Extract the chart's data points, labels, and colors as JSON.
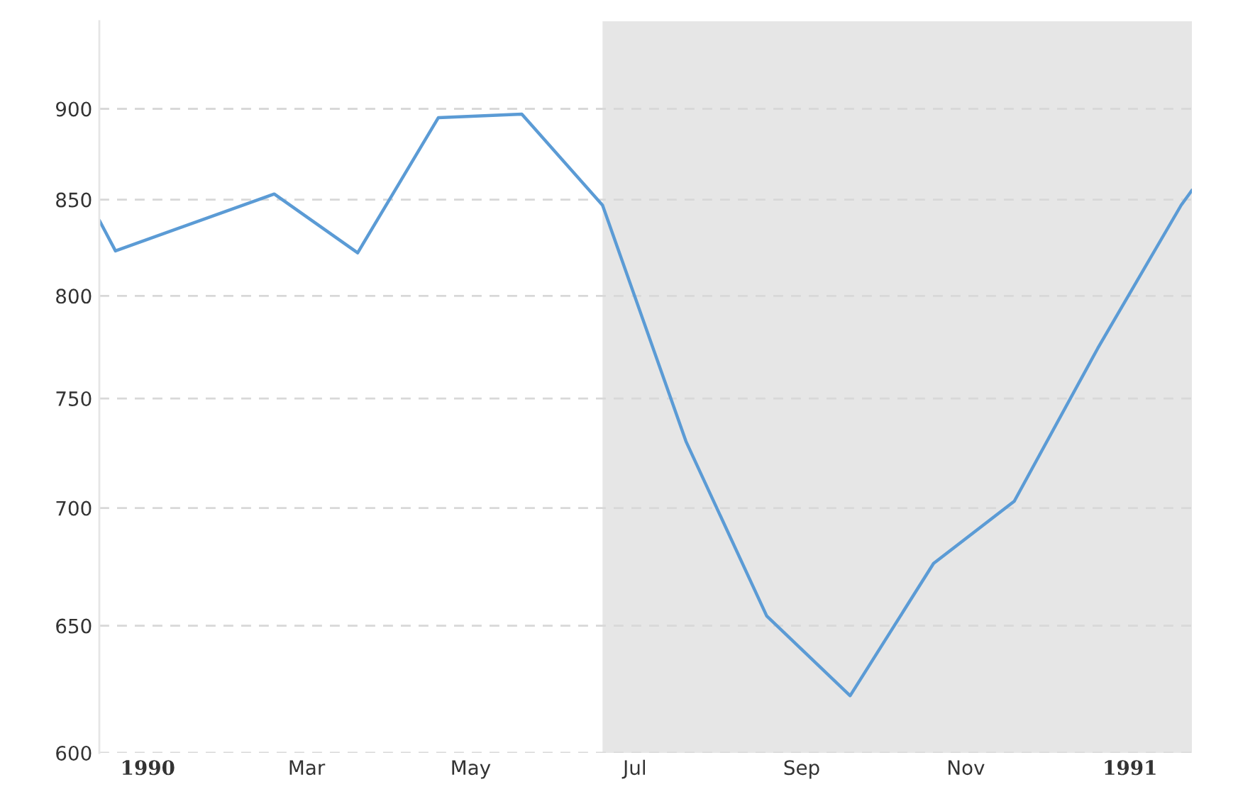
{
  "chart_data": {
    "type": "line",
    "log": true,
    "grid": "y",
    "x": [
      "1989-12-14",
      "1989-12-20",
      "1990-02-17",
      "1990-03-20",
      "1990-04-19",
      "1990-05-20",
      "1990-06-19",
      "1990-07-20",
      "1990-08-19",
      "1990-09-19",
      "1990-10-20",
      "1990-11-19",
      "1990-12-20",
      "1991-01-20",
      "1991-01-24"
    ],
    "series": [
      {
        "color": "#5b9bd5",
        "values": [
          839,
          823,
          853,
          822,
          895,
          897,
          847,
          730,
          654,
          622,
          676,
          703,
          774,
          847,
          855
        ]
      }
    ],
    "xlim": [
      "1989-12-14",
      "1991-01-24"
    ],
    "ylim": [
      600,
      951
    ],
    "xticks": [
      {
        "value": "1990-01-01",
        "label": "1990"
      },
      {
        "value": "1990-03-01",
        "label": "Mar"
      },
      {
        "value": "1990-05-01",
        "label": "May"
      },
      {
        "value": "1990-07-01",
        "label": "Jul"
      },
      {
        "value": "1990-09-01",
        "label": "Sep"
      },
      {
        "value": "1990-11-01",
        "label": "Nov"
      },
      {
        "value": "1991-01-01",
        "label": "1991"
      }
    ],
    "yticks": [
      600,
      650,
      700,
      750,
      800,
      850,
      900
    ],
    "bands": [
      {
        "axis": "x",
        "from": "1990-06-19",
        "to": "1991-01-24",
        "color": "#e6e6e6"
      }
    ]
  }
}
